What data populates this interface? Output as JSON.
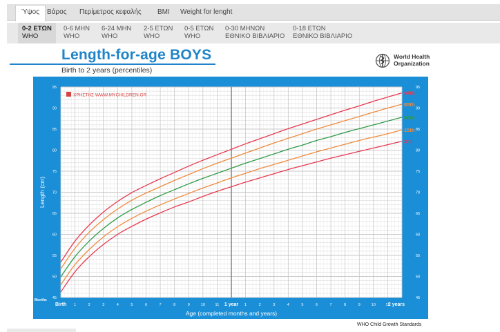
{
  "tabs": [
    {
      "label": "Ύψος",
      "active": true
    },
    {
      "label": "Βάρος",
      "active": false
    },
    {
      "label": "Περίμετρος κεφαλής",
      "active": false
    },
    {
      "label": "BMI",
      "active": false
    },
    {
      "label": "Weight for lenght",
      "active": false
    }
  ],
  "subtabs": [
    {
      "line1": "0-2 ΕΤΩΝ",
      "line2": "WHO",
      "active": true
    },
    {
      "line1": "0-6 ΜΗΝ",
      "line2": "WHO",
      "active": false
    },
    {
      "line1": "6-24 ΜΗΝ",
      "line2": "WHO",
      "active": false
    },
    {
      "line1": "2-5 ΕΤΩΝ",
      "line2": "WHO",
      "active": false
    },
    {
      "line1": "0-5 ΕΤΩΝ",
      "line2": "WHO",
      "active": false
    },
    {
      "line1": "0-30 ΜΗΝΩΝ",
      "line2": "ΕΘΝΙΚΟ ΒΙΒΛΙΑΡΙΟ",
      "active": false
    },
    {
      "line1": "0-18 ΕΤΩΝ",
      "line2": "ΕΘΝΙΚΟ ΒΙΒΛΙΑΡΙΟ",
      "active": false
    }
  ],
  "header": {
    "title": "Length-for-age BOYS",
    "subtitle": "Birth to 2 years (percentiles)"
  },
  "who_logo": {
    "line1": "World Health",
    "line2": "Organization",
    "icon": "who-emblem-icon"
  },
  "footer": {
    "note": "WHO Child Growth Standards"
  },
  "colors": {
    "frame": "#1a8fd8",
    "plot_bg": "#ffffff",
    "grid": "#c7c7c7",
    "p97": "#e8384f",
    "p85": "#f08a3c",
    "p50": "#2e9a47",
    "p15": "#f08a3c",
    "p3": "#e8384f"
  },
  "chart_data": {
    "type": "line",
    "title": "Length-for-age BOYS",
    "subtitle": "Birth to 2 years (percentiles)",
    "xlabel": "Age (completed months and years)",
    "ylabel": "Length (cm)",
    "x_axis_corner_label": "Months",
    "legend_entry": "ΧΡΗΣΤΗΣ WWW.MYCHILDREN.GR",
    "legend_placement": "top-left",
    "grid": true,
    "xlim": [
      0,
      24
    ],
    "ylim": [
      45,
      95
    ],
    "y_ticks": [
      45,
      50,
      55,
      60,
      65,
      70,
      75,
      80,
      85,
      90,
      95
    ],
    "x_ticks": [
      "Birth",
      "1",
      "2",
      "3",
      "4",
      "5",
      "6",
      "7",
      "8",
      "9",
      "10",
      "11",
      "1 year",
      "1",
      "2",
      "3",
      "4",
      "5",
      "6",
      "7",
      "8",
      "9",
      "10",
      "11",
      "2 years"
    ],
    "x": [
      0,
      1,
      2,
      3,
      4,
      5,
      6,
      7,
      8,
      9,
      10,
      11,
      12,
      13,
      14,
      15,
      16,
      17,
      18,
      19,
      20,
      21,
      22,
      23,
      24
    ],
    "series": [
      {
        "name": "97th",
        "values": [
          53.4,
          58.4,
          62.2,
          65.3,
          67.8,
          69.9,
          71.6,
          73.2,
          74.7,
          76.2,
          77.6,
          78.9,
          80.2,
          81.5,
          82.7,
          83.9,
          85.1,
          86.2,
          87.3,
          88.4,
          89.5,
          90.5,
          91.6,
          92.6,
          93.6
        ]
      },
      {
        "name": "85th",
        "values": [
          51.8,
          56.7,
          60.5,
          63.5,
          66.0,
          68.1,
          69.8,
          71.3,
          72.8,
          74.2,
          75.6,
          76.9,
          78.1,
          79.3,
          80.5,
          81.7,
          82.8,
          83.9,
          85.0,
          86.0,
          87.0,
          88.0,
          89.0,
          90.0,
          90.9
        ]
      },
      {
        "name": "50th",
        "values": [
          49.9,
          54.7,
          58.4,
          61.4,
          63.9,
          65.9,
          67.6,
          69.2,
          70.6,
          72.0,
          73.3,
          74.5,
          75.7,
          76.9,
          78.0,
          79.1,
          80.2,
          81.2,
          82.3,
          83.2,
          84.2,
          85.1,
          86.0,
          86.9,
          87.8
        ]
      },
      {
        "name": "15th",
        "values": [
          48.0,
          52.8,
          56.4,
          59.4,
          61.8,
          63.8,
          65.5,
          67.0,
          68.4,
          69.7,
          71.0,
          72.2,
          73.4,
          74.5,
          75.6,
          76.6,
          77.6,
          78.6,
          79.6,
          80.5,
          81.4,
          82.3,
          83.1,
          83.9,
          84.8
        ]
      },
      {
        "name": "3rd",
        "values": [
          46.3,
          51.1,
          54.7,
          57.6,
          60.0,
          61.9,
          63.6,
          65.1,
          66.5,
          67.7,
          69.0,
          70.2,
          71.3,
          72.4,
          73.4,
          74.4,
          75.4,
          76.3,
          77.2,
          78.1,
          78.9,
          79.7,
          80.5,
          81.3,
          82.1
        ]
      }
    ]
  }
}
